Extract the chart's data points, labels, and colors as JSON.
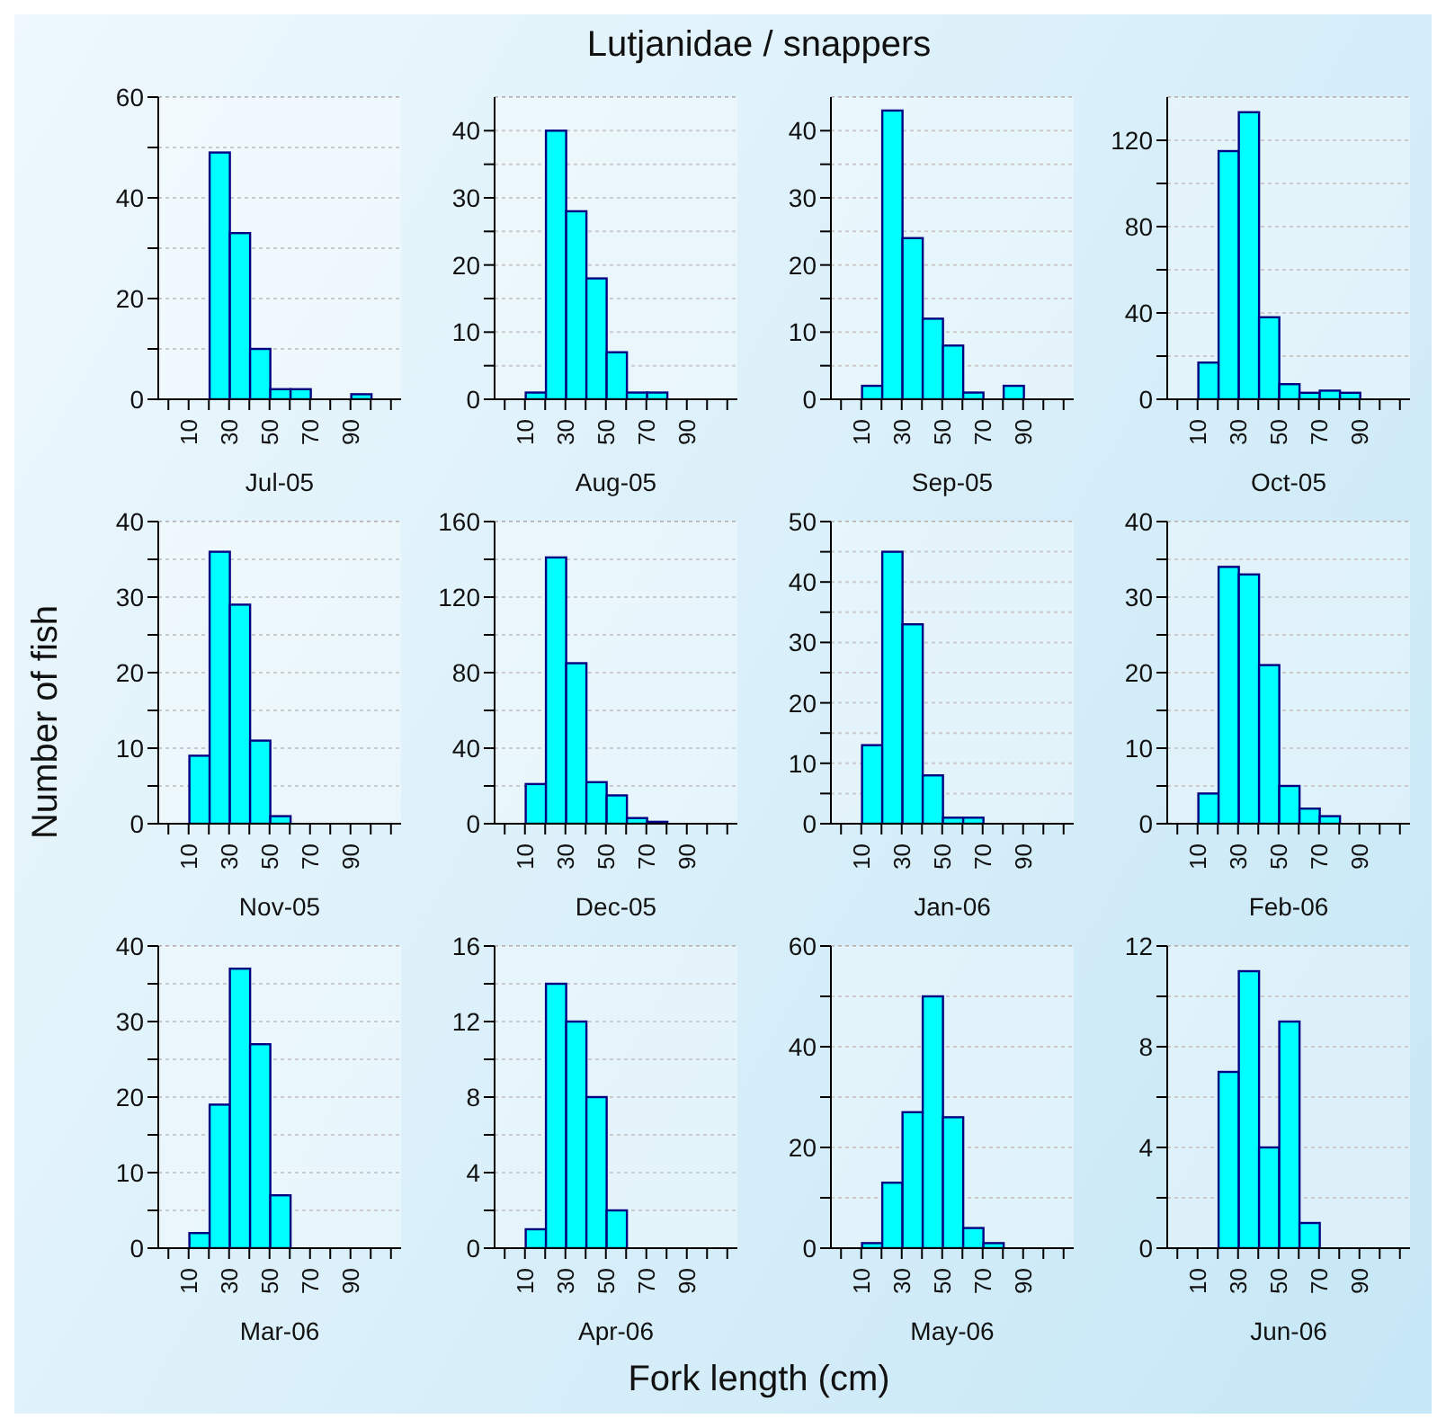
{
  "chart_data": [
    {
      "type": "histogram",
      "xlabel": "Jul-05",
      "annotations": [
        "Lutjanidae / snappers",
        "Number of fish",
        "Fork length (cm)"
      ],
      "bins": [
        0,
        10,
        20,
        30,
        40,
        50,
        60,
        70,
        80,
        90,
        100,
        110
      ],
      "values": [
        0,
        0,
        49,
        33,
        10,
        2,
        2,
        0,
        0,
        1,
        0
      ],
      "color": "#00ffff",
      "xlim": [
        -5,
        115
      ],
      "xticks": [
        {
          "value": 0,
          "label": null
        },
        10,
        {
          "value": 20,
          "label": null
        },
        30,
        {
          "value": 40,
          "label": null
        },
        50,
        {
          "value": 60,
          "label": null
        },
        70,
        {
          "value": 80,
          "label": null
        },
        90,
        {
          "value": 100,
          "label": null
        },
        {
          "value": 110,
          "label": null
        }
      ],
      "ylim": [
        0,
        60
      ],
      "yticks": [
        0,
        {
          "value": 10,
          "label": null
        },
        20,
        {
          "value": 30,
          "label": null
        },
        40,
        {
          "value": 50,
          "label": null
        },
        60
      ],
      "grid": "y"
    },
    {
      "type": "histogram",
      "xlabel": "Aug-05",
      "bins": [
        0,
        10,
        20,
        30,
        40,
        50,
        60,
        70,
        80,
        90,
        100,
        110
      ],
      "values": [
        0,
        1,
        40,
        28,
        18,
        7,
        1,
        1,
        0,
        0,
        0
      ],
      "color": "#00ffff",
      "xlim": [
        -5,
        115
      ],
      "xticks": [
        {
          "value": 0,
          "label": null
        },
        10,
        {
          "value": 20,
          "label": null
        },
        30,
        {
          "value": 40,
          "label": null
        },
        50,
        {
          "value": 60,
          "label": null
        },
        70,
        {
          "value": 80,
          "label": null
        },
        90,
        {
          "value": 100,
          "label": null
        },
        {
          "value": 110,
          "label": null
        }
      ],
      "ylim": [
        0,
        45
      ],
      "yticks": [
        0,
        {
          "value": 5,
          "label": null
        },
        10,
        {
          "value": 15,
          "label": null
        },
        20,
        {
          "value": 25,
          "label": null
        },
        30,
        {
          "value": 35,
          "label": null
        },
        40
      ],
      "grid": "y"
    },
    {
      "type": "histogram",
      "xlabel": "Sep-05",
      "bins": [
        0,
        10,
        20,
        30,
        40,
        50,
        60,
        70,
        80,
        90,
        100,
        110
      ],
      "values": [
        0,
        2,
        43,
        24,
        12,
        8,
        1,
        0,
        2,
        0,
        0
      ],
      "color": "#00ffff",
      "xlim": [
        -5,
        115
      ],
      "xticks": [
        {
          "value": 0,
          "label": null
        },
        10,
        {
          "value": 20,
          "label": null
        },
        30,
        {
          "value": 40,
          "label": null
        },
        50,
        {
          "value": 60,
          "label": null
        },
        70,
        {
          "value": 80,
          "label": null
        },
        90,
        {
          "value": 100,
          "label": null
        },
        {
          "value": 110,
          "label": null
        }
      ],
      "ylim": [
        0,
        45
      ],
      "yticks": [
        0,
        {
          "value": 5,
          "label": null
        },
        10,
        {
          "value": 15,
          "label": null
        },
        20,
        {
          "value": 25,
          "label": null
        },
        30,
        {
          "value": 35,
          "label": null
        },
        40
      ],
      "grid": "y"
    },
    {
      "type": "histogram",
      "xlabel": "Oct-05",
      "bins": [
        0,
        10,
        20,
        30,
        40,
        50,
        60,
        70,
        80,
        90,
        100,
        110
      ],
      "values": [
        0,
        17,
        115,
        133,
        38,
        7,
        3,
        4,
        3,
        0,
        0
      ],
      "color": "#00ffff",
      "xlim": [
        -5,
        115
      ],
      "xticks": [
        {
          "value": 0,
          "label": null
        },
        10,
        {
          "value": 20,
          "label": null
        },
        30,
        {
          "value": 40,
          "label": null
        },
        50,
        {
          "value": 60,
          "label": null
        },
        70,
        {
          "value": 80,
          "label": null
        },
        90,
        {
          "value": 100,
          "label": null
        },
        {
          "value": 110,
          "label": null
        }
      ],
      "ylim": [
        0,
        140
      ],
      "yticks": [
        0,
        {
          "value": 20,
          "label": null
        },
        40,
        {
          "value": 60,
          "label": null
        },
        80,
        {
          "value": 100,
          "label": null
        },
        120
      ],
      "grid": "y"
    },
    {
      "type": "histogram",
      "xlabel": "Nov-05",
      "bins": [
        0,
        10,
        20,
        30,
        40,
        50,
        60,
        70,
        80,
        90,
        100,
        110
      ],
      "values": [
        0,
        9,
        36,
        29,
        11,
        1,
        0,
        0,
        0,
        0,
        0
      ],
      "color": "#00ffff",
      "xlim": [
        -5,
        115
      ],
      "xticks": [
        {
          "value": 0,
          "label": null
        },
        10,
        {
          "value": 20,
          "label": null
        },
        30,
        {
          "value": 40,
          "label": null
        },
        50,
        {
          "value": 60,
          "label": null
        },
        70,
        {
          "value": 80,
          "label": null
        },
        90,
        {
          "value": 100,
          "label": null
        },
        {
          "value": 110,
          "label": null
        }
      ],
      "ylim": [
        0,
        40
      ],
      "yticks": [
        0,
        {
          "value": 5,
          "label": null
        },
        10,
        {
          "value": 15,
          "label": null
        },
        20,
        {
          "value": 25,
          "label": null
        },
        30,
        {
          "value": 35,
          "label": null
        },
        40
      ],
      "grid": "y"
    },
    {
      "type": "histogram",
      "xlabel": "Dec-05",
      "bins": [
        0,
        10,
        20,
        30,
        40,
        50,
        60,
        70,
        80,
        90,
        100,
        110
      ],
      "values": [
        0,
        21,
        141,
        85,
        22,
        15,
        3,
        1,
        0,
        0,
        0
      ],
      "color": "#00ffff",
      "xlim": [
        -5,
        115
      ],
      "xticks": [
        {
          "value": 0,
          "label": null
        },
        10,
        {
          "value": 20,
          "label": null
        },
        30,
        {
          "value": 40,
          "label": null
        },
        50,
        {
          "value": 60,
          "label": null
        },
        70,
        {
          "value": 80,
          "label": null
        },
        90,
        {
          "value": 100,
          "label": null
        },
        {
          "value": 110,
          "label": null
        }
      ],
      "ylim": [
        0,
        160
      ],
      "yticks": [
        0,
        {
          "value": 20,
          "label": null
        },
        40,
        {
          "value": 60,
          "label": null
        },
        80,
        {
          "value": 100,
          "label": null
        },
        120,
        {
          "value": 140,
          "label": null
        },
        160
      ],
      "grid": "y"
    },
    {
      "type": "histogram",
      "xlabel": "Jan-06",
      "bins": [
        0,
        10,
        20,
        30,
        40,
        50,
        60,
        70,
        80,
        90,
        100,
        110
      ],
      "values": [
        0,
        13,
        45,
        33,
        8,
        1,
        1,
        0,
        0,
        0,
        0
      ],
      "color": "#00ffff",
      "xlim": [
        -5,
        115
      ],
      "xticks": [
        {
          "value": 0,
          "label": null
        },
        10,
        {
          "value": 20,
          "label": null
        },
        30,
        {
          "value": 40,
          "label": null
        },
        50,
        {
          "value": 60,
          "label": null
        },
        70,
        {
          "value": 80,
          "label": null
        },
        90,
        {
          "value": 100,
          "label": null
        },
        {
          "value": 110,
          "label": null
        }
      ],
      "ylim": [
        0,
        50
      ],
      "yticks": [
        0,
        {
          "value": 5,
          "label": null
        },
        10,
        {
          "value": 15,
          "label": null
        },
        20,
        {
          "value": 25,
          "label": null
        },
        30,
        {
          "value": 35,
          "label": null
        },
        40,
        {
          "value": 45,
          "label": null
        },
        50
      ],
      "grid": "y"
    },
    {
      "type": "histogram",
      "xlabel": "Feb-06",
      "bins": [
        0,
        10,
        20,
        30,
        40,
        50,
        60,
        70,
        80,
        90,
        100,
        110
      ],
      "values": [
        0,
        4,
        34,
        33,
        21,
        5,
        2,
        1,
        0,
        0,
        0
      ],
      "color": "#00ffff",
      "xlim": [
        -5,
        115
      ],
      "xticks": [
        {
          "value": 0,
          "label": null
        },
        10,
        {
          "value": 20,
          "label": null
        },
        30,
        {
          "value": 40,
          "label": null
        },
        50,
        {
          "value": 60,
          "label": null
        },
        70,
        {
          "value": 80,
          "label": null
        },
        90,
        {
          "value": 100,
          "label": null
        },
        {
          "value": 110,
          "label": null
        }
      ],
      "ylim": [
        0,
        40
      ],
      "yticks": [
        0,
        {
          "value": 5,
          "label": null
        },
        10,
        {
          "value": 15,
          "label": null
        },
        20,
        {
          "value": 25,
          "label": null
        },
        30,
        {
          "value": 35,
          "label": null
        },
        40
      ],
      "grid": "y"
    },
    {
      "type": "histogram",
      "xlabel": "Mar-06",
      "bins": [
        0,
        10,
        20,
        30,
        40,
        50,
        60,
        70,
        80,
        90,
        100,
        110
      ],
      "values": [
        0,
        2,
        19,
        37,
        27,
        7,
        0,
        0,
        0,
        0,
        0
      ],
      "color": "#00ffff",
      "xlim": [
        -5,
        115
      ],
      "xticks": [
        {
          "value": 0,
          "label": null
        },
        10,
        {
          "value": 20,
          "label": null
        },
        30,
        {
          "value": 40,
          "label": null
        },
        50,
        {
          "value": 60,
          "label": null
        },
        70,
        {
          "value": 80,
          "label": null
        },
        90,
        {
          "value": 100,
          "label": null
        },
        {
          "value": 110,
          "label": null
        }
      ],
      "ylim": [
        0,
        40
      ],
      "yticks": [
        0,
        {
          "value": 5,
          "label": null
        },
        10,
        {
          "value": 15,
          "label": null
        },
        20,
        {
          "value": 25,
          "label": null
        },
        30,
        {
          "value": 35,
          "label": null
        },
        40
      ],
      "grid": "y"
    },
    {
      "type": "histogram",
      "xlabel": "Apr-06",
      "bins": [
        0,
        10,
        20,
        30,
        40,
        50,
        60,
        70,
        80,
        90,
        100,
        110
      ],
      "values": [
        0,
        1,
        14,
        12,
        8,
        2,
        0,
        0,
        0,
        0,
        0
      ],
      "color": "#00ffff",
      "xlim": [
        -5,
        115
      ],
      "xticks": [
        {
          "value": 0,
          "label": null
        },
        10,
        {
          "value": 20,
          "label": null
        },
        30,
        {
          "value": 40,
          "label": null
        },
        50,
        {
          "value": 60,
          "label": null
        },
        70,
        {
          "value": 80,
          "label": null
        },
        90,
        {
          "value": 100,
          "label": null
        },
        {
          "value": 110,
          "label": null
        }
      ],
      "ylim": [
        0,
        16
      ],
      "yticks": [
        0,
        {
          "value": 2,
          "label": null
        },
        4,
        {
          "value": 6,
          "label": null
        },
        8,
        {
          "value": 10,
          "label": null
        },
        12,
        {
          "value": 14,
          "label": null
        },
        16
      ],
      "grid": "y"
    },
    {
      "type": "histogram",
      "xlabel": "May-06",
      "bins": [
        0,
        10,
        20,
        30,
        40,
        50,
        60,
        70,
        80,
        90,
        100,
        110
      ],
      "values": [
        0,
        1,
        13,
        27,
        50,
        26,
        4,
        1,
        0,
        0,
        0
      ],
      "color": "#00ffff",
      "xlim": [
        -5,
        115
      ],
      "xticks": [
        {
          "value": 0,
          "label": null
        },
        10,
        {
          "value": 20,
          "label": null
        },
        30,
        {
          "value": 40,
          "label": null
        },
        50,
        {
          "value": 60,
          "label": null
        },
        70,
        {
          "value": 80,
          "label": null
        },
        90,
        {
          "value": 100,
          "label": null
        },
        {
          "value": 110,
          "label": null
        }
      ],
      "ylim": [
        0,
        60
      ],
      "yticks": [
        0,
        {
          "value": 10,
          "label": null
        },
        20,
        {
          "value": 30,
          "label": null
        },
        40,
        {
          "value": 50,
          "label": null
        },
        60
      ],
      "grid": "y"
    },
    {
      "type": "histogram",
      "xlabel": "Jun-06",
      "bins": [
        0,
        10,
        20,
        30,
        40,
        50,
        60,
        70,
        80,
        90,
        100,
        110
      ],
      "values": [
        0,
        0,
        7,
        11,
        4,
        9,
        1,
        0,
        0,
        0,
        0
      ],
      "color": "#00ffff",
      "xlim": [
        -5,
        115
      ],
      "xticks": [
        {
          "value": 0,
          "label": null
        },
        10,
        {
          "value": 20,
          "label": null
        },
        30,
        {
          "value": 40,
          "label": null
        },
        50,
        {
          "value": 60,
          "label": null
        },
        70,
        {
          "value": 80,
          "label": null
        },
        90,
        {
          "value": 100,
          "label": null
        },
        {
          "value": 110,
          "label": null
        }
      ],
      "ylim": [
        0,
        12
      ],
      "yticks": [
        0,
        {
          "value": 2,
          "label": null
        },
        4,
        {
          "value": 6,
          "label": null
        },
        8,
        {
          "value": 10,
          "label": null
        },
        12
      ],
      "grid": "y"
    }
  ]
}
